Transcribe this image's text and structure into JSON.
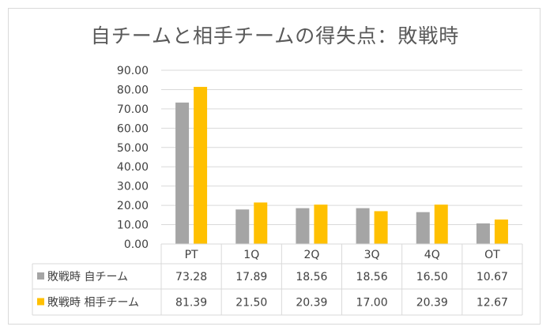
{
  "chart_data": {
    "type": "bar",
    "title": "自チームと相手チームの得失点：敗戦時",
    "categories": [
      "PT",
      "1Q",
      "2Q",
      "3Q",
      "4Q",
      "OT"
    ],
    "series": [
      {
        "name": "敗戦時 自チーム",
        "values": [
          73.28,
          17.89,
          18.56,
          18.56,
          16.5,
          10.67
        ],
        "labels": [
          "73.28",
          "17.89",
          "18.56",
          "18.56",
          "16.50",
          "10.67"
        ],
        "color": "#a5a5a5"
      },
      {
        "name": "敗戦時 相手チーム",
        "values": [
          81.39,
          21.5,
          20.39,
          17.0,
          20.39,
          12.67
        ],
        "labels": [
          "81.39",
          "21.50",
          "20.39",
          "17.00",
          "20.39",
          "12.67"
        ],
        "color": "#ffc000"
      }
    ],
    "ylim": [
      0,
      90
    ],
    "yticks": [
      "0.00",
      "10.00",
      "20.00",
      "30.00",
      "40.00",
      "50.00",
      "60.00",
      "70.00",
      "80.00",
      "90.00"
    ],
    "grid": true,
    "data_table": true
  }
}
